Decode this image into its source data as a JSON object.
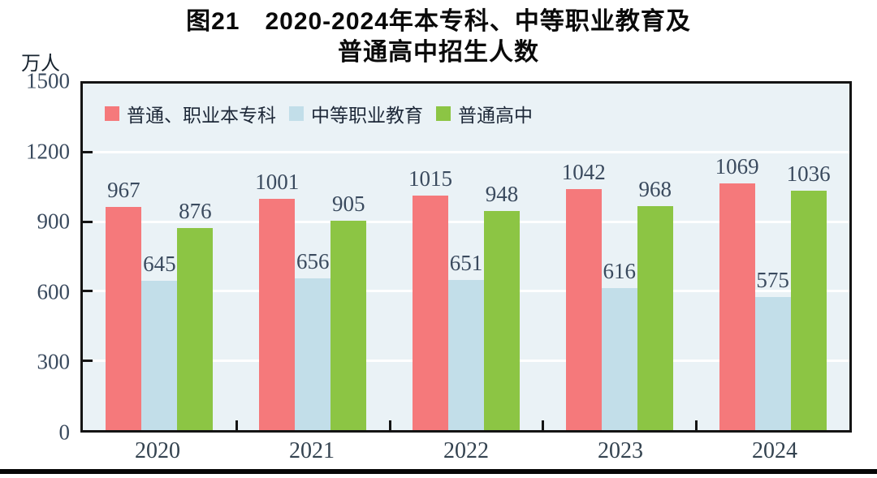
{
  "page": {
    "title_line1": "图21　2020-2024年本专科、中等职业教育及",
    "title_line2": "普通高中招生人数",
    "unit_label": "万人"
  },
  "chart_data": {
    "type": "bar",
    "title": "图21 2020-2024年本专科、中等职业教育及普通高中招生人数",
    "ylabel": "万人",
    "categories": [
      "2020",
      "2021",
      "2022",
      "2023",
      "2024"
    ],
    "series": [
      {
        "name": "普通、职业本专科",
        "color": "#f5797b",
        "values": [
          967,
          1001,
          1015,
          1042,
          1069
        ]
      },
      {
        "name": "中等职业教育",
        "color": "#c2dee9",
        "values": [
          645,
          656,
          651,
          616,
          575
        ]
      },
      {
        "name": "普通高中",
        "color": "#8cc544",
        "values": [
          876,
          905,
          948,
          968,
          1036
        ]
      }
    ],
    "ylim": [
      0,
      1500
    ],
    "yticks": [
      0,
      300,
      600,
      900,
      1200,
      1500
    ],
    "gridlines": [
      300,
      600,
      900,
      1200
    ],
    "grid": true,
    "grid_color": "#ffffff",
    "plot_bg": "#eaf2f6",
    "frame_color": "#141414",
    "legend_position": "top-left-inside",
    "value_labels": true
  }
}
